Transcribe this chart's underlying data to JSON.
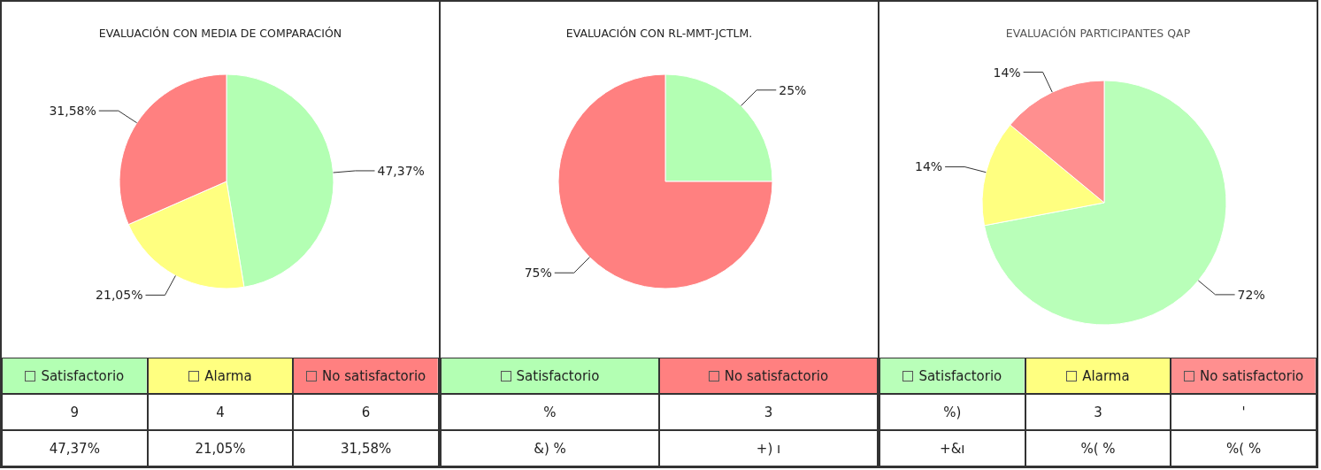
{
  "chart_data": [
    {
      "type": "pie",
      "title": "EVALUACIÓN CON MEDIA DE COMPARACIÓN",
      "categories": [
        "Satisfactorio",
        "Alarma",
        "No satisfactorio"
      ],
      "values": [
        47.37,
        21.05,
        31.58
      ],
      "colors": [
        "#b3ffb3",
        "#ffff80",
        "#ff8080"
      ],
      "legend": "bottom",
      "value_labels": [
        "47,37%",
        "21,05%",
        "31,58%"
      ],
      "annotations": [
        "9",
        "4",
        "6",
        "47,37%",
        "21,05%",
        "31,58%"
      ]
    },
    {
      "type": "pie",
      "title": "EVALUACIÓN CON RL-MMT-JCTLM.",
      "categories": [
        "Satisfactorio",
        "No satisfactorio"
      ],
      "values": [
        25,
        75
      ],
      "colors": [
        "#b3ffb3",
        "#ff8080"
      ],
      "legend": "bottom",
      "value_labels": [
        "25%",
        "75%"
      ],
      "annotations": [
        "%",
        "3",
        "&) %",
        "+) ı"
      ]
    },
    {
      "type": "pie",
      "title": "EVALUACIÓN PARTICIPANTES QAP",
      "categories": [
        "Satisfactorio",
        "Alarma",
        "No satisfactorio"
      ],
      "values": [
        72,
        14,
        14
      ],
      "colors": [
        "#b9ffb9",
        "#ffff80",
        "#ff8f8f"
      ],
      "legend": "bottom",
      "value_labels": [
        "72%",
        "14%",
        "14%"
      ],
      "annotations": [
        "%)",
        "3",
        "'",
        "+&ı",
        "%( %",
        "%( %"
      ]
    }
  ]
}
